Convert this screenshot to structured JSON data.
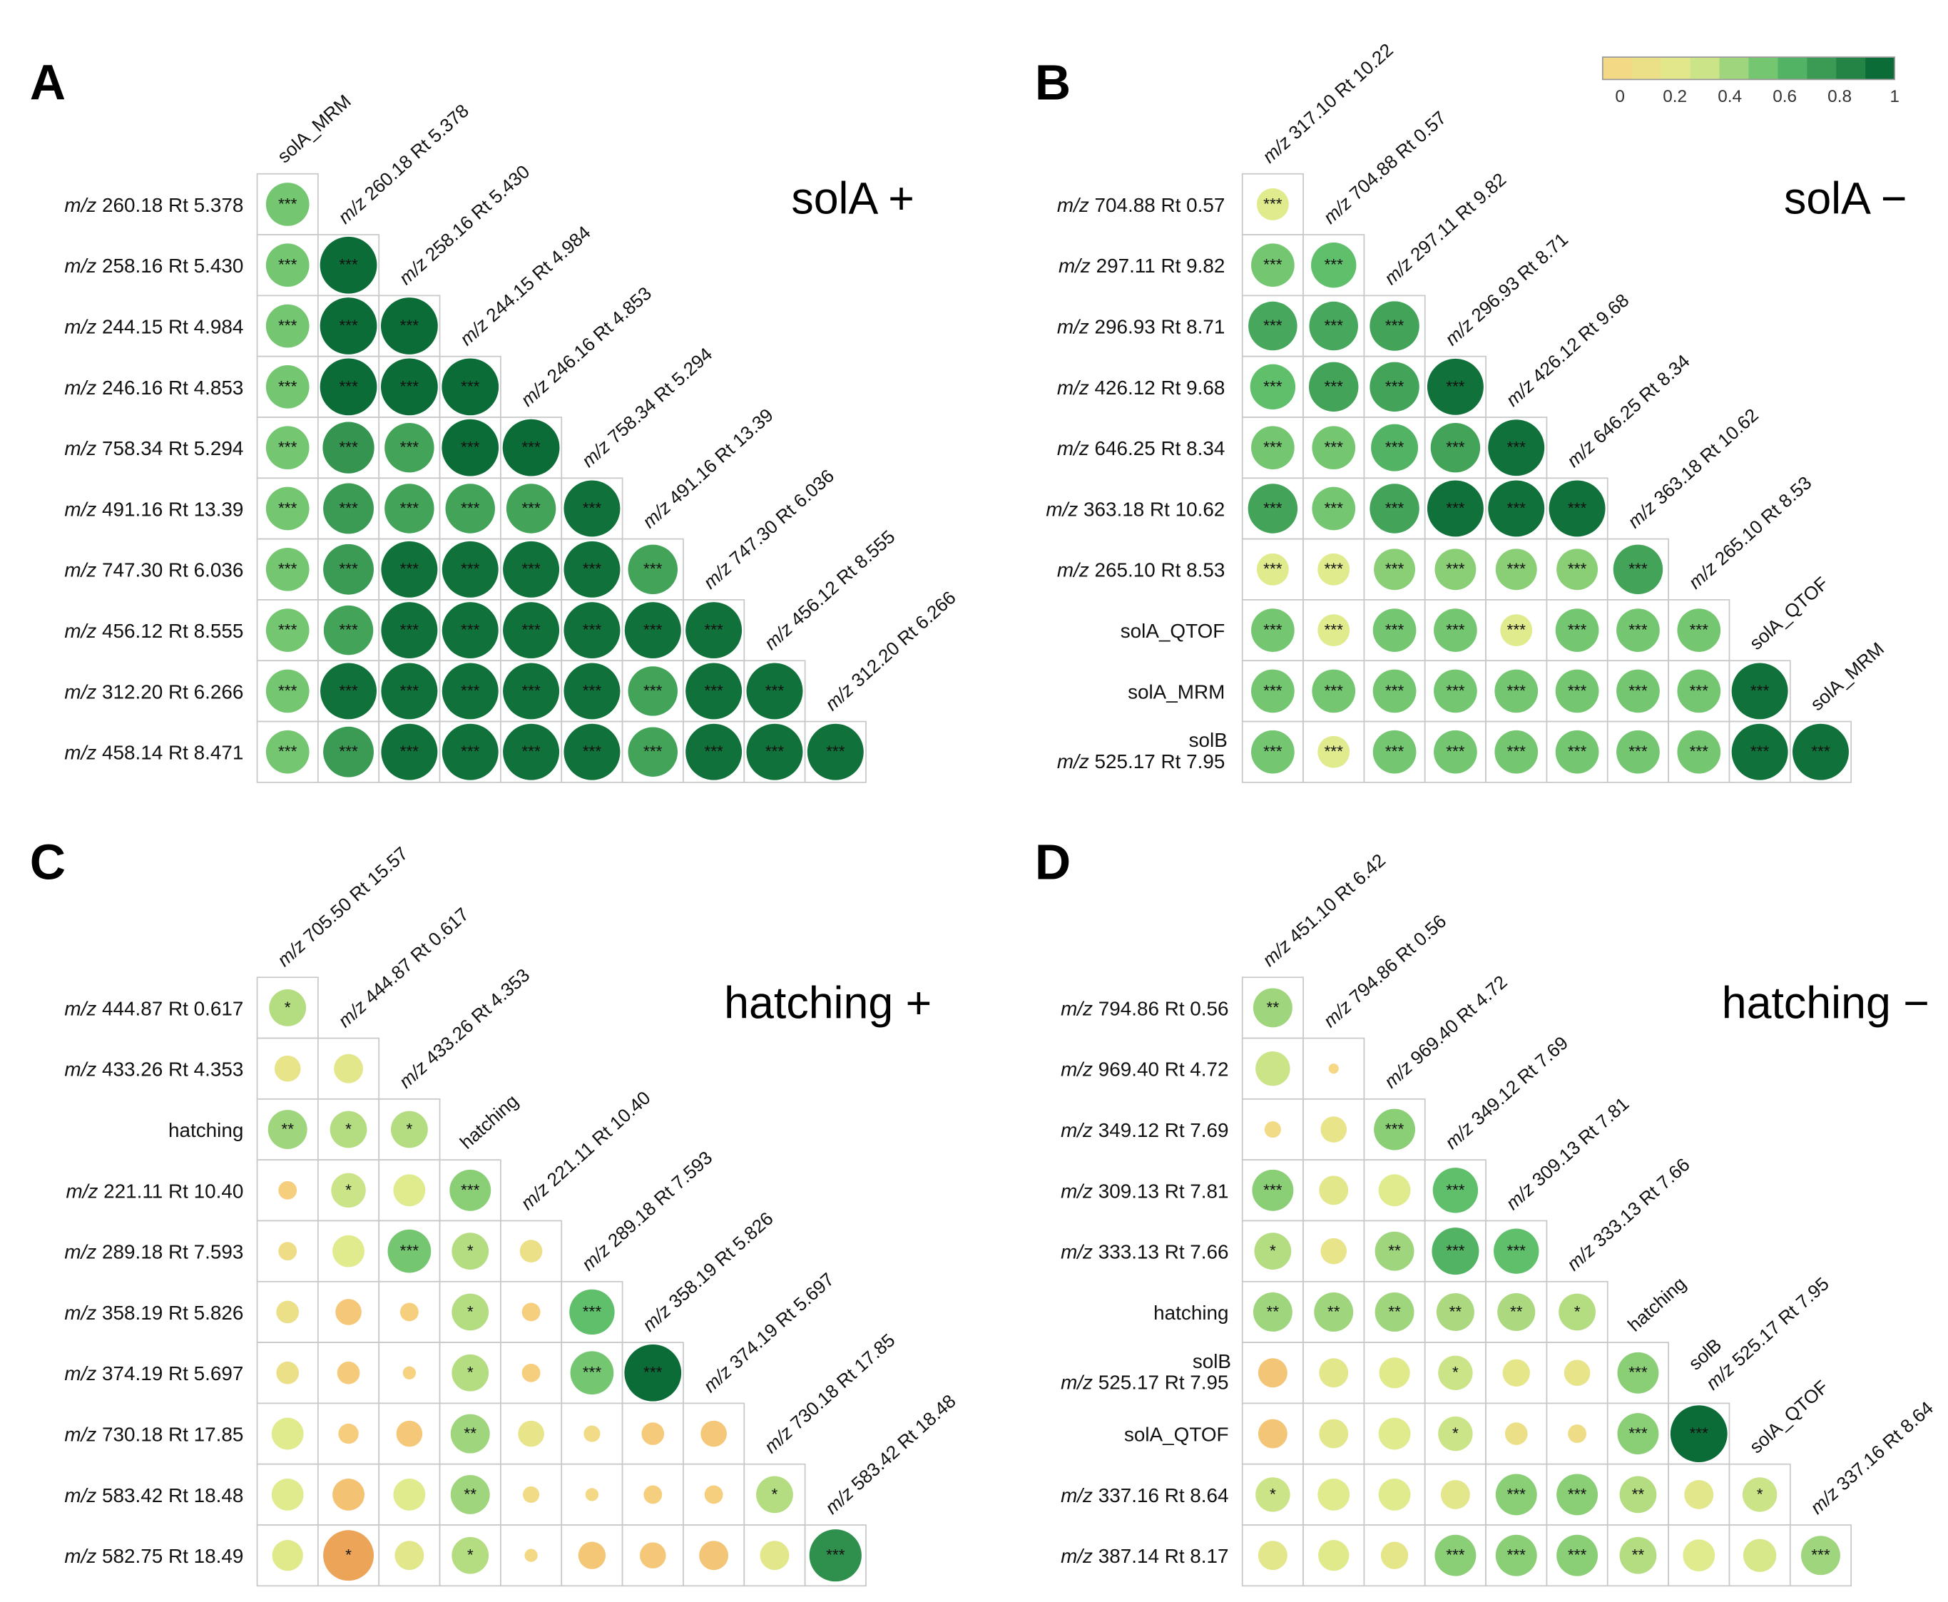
{
  "legend": {
    "ticks": [
      "0",
      "0.2",
      "0.4",
      "0.6",
      "0.8",
      "1"
    ]
  },
  "colors": {
    "neg": "#e8944a",
    "zero": "#f7d584",
    "low": "#dfeb8c",
    "mid": "#5fbf6b",
    "high": "#006030",
    "border": "#c8c8c8",
    "text": "#111111"
  },
  "chart_data": [
    {
      "type": "heatmap",
      "panel": "A",
      "title": "solA +",
      "labels": [
        {
          "pre": "m/z",
          "text": "260.18 Rt 5.378"
        },
        {
          "pre": "m/z",
          "text": "258.16 Rt 5.430"
        },
        {
          "pre": "m/z",
          "text": "244.15 Rt 4.984"
        },
        {
          "pre": "m/z",
          "text": "246.16 Rt 4.853"
        },
        {
          "pre": "m/z",
          "text": "758.34 Rt 5.294"
        },
        {
          "pre": "m/z",
          "text": "491.16 Rt 13.39"
        },
        {
          "pre": "m/z",
          "text": "747.30 Rt 6.036"
        },
        {
          "pre": "m/z",
          "text": "456.12 Rt 8.555"
        },
        {
          "pre": "m/z",
          "text": "312.20 Rt 6.266"
        },
        {
          "pre": "m/z",
          "text": "458.14 Rt 8.471"
        }
      ],
      "top_labels": [
        {
          "pre": "",
          "text": "solA_MRM"
        },
        {
          "pre": "m/z",
          "text": "260.18 Rt 5.378"
        },
        {
          "pre": "m/z",
          "text": "258.16 Rt 5.430"
        },
        {
          "pre": "m/z",
          "text": "244.15 Rt 4.984"
        },
        {
          "pre": "m/z",
          "text": "246.16 Rt 4.853"
        },
        {
          "pre": "m/z",
          "text": "758.34 Rt 5.294"
        },
        {
          "pre": "m/z",
          "text": "491.16 Rt 13.39"
        },
        {
          "pre": "m/z",
          "text": "747.30 Rt 6.036"
        },
        {
          "pre": "m/z",
          "text": "456.12 Rt 8.555"
        },
        {
          "pre": "m/z",
          "text": "312.20 Rt 6.266"
        }
      ],
      "values": [
        [
          0.55
        ],
        [
          0.55,
          0.95
        ],
        [
          0.55,
          0.95,
          0.95
        ],
        [
          0.55,
          0.95,
          0.95,
          0.95
        ],
        [
          0.55,
          0.78,
          0.72,
          0.95,
          0.95
        ],
        [
          0.55,
          0.75,
          0.72,
          0.72,
          0.72,
          0.93
        ],
        [
          0.55,
          0.75,
          0.93,
          0.93,
          0.93,
          0.93,
          0.72
        ],
        [
          0.55,
          0.72,
          0.93,
          0.93,
          0.93,
          0.93,
          0.93,
          0.93
        ],
        [
          0.55,
          0.93,
          0.93,
          0.93,
          0.93,
          0.93,
          0.72,
          0.93,
          0.93
        ],
        [
          0.55,
          0.75,
          0.93,
          0.93,
          0.93,
          0.93,
          0.72,
          0.93,
          0.93,
          0.93
        ]
      ],
      "stars": [
        [
          "***"
        ],
        [
          "***",
          "***"
        ],
        [
          "***",
          "***",
          "***"
        ],
        [
          "***",
          "***",
          "***",
          "***"
        ],
        [
          "***",
          "***",
          "***",
          "***",
          "***"
        ],
        [
          "***",
          "***",
          "***",
          "***",
          "***",
          "***"
        ],
        [
          "***",
          "***",
          "***",
          "***",
          "***",
          "***",
          "***"
        ],
        [
          "***",
          "***",
          "***",
          "***",
          "***",
          "***",
          "***",
          "***"
        ],
        [
          "***",
          "***",
          "***",
          "***",
          "***",
          "***",
          "***",
          "***",
          "***"
        ],
        [
          "***",
          "***",
          "***",
          "***",
          "***",
          "***",
          "***",
          "***",
          "***",
          "***"
        ]
      ]
    },
    {
      "type": "heatmap",
      "panel": "B",
      "title": "solA −",
      "labels": [
        {
          "pre": "m/z",
          "text": "704.88 Rt 0.57"
        },
        {
          "pre": "m/z",
          "text": "297.11 Rt 9.82"
        },
        {
          "pre": "m/z",
          "text": "296.93 Rt 8.71"
        },
        {
          "pre": "m/z",
          "text": "426.12 Rt 9.68"
        },
        {
          "pre": "m/z",
          "text": "646.25 Rt 8.34"
        },
        {
          "pre": "m/z",
          "text": "363.18 Rt 10.62"
        },
        {
          "pre": "m/z",
          "text": "265.10 Rt 8.53"
        },
        {
          "pre": "",
          "text": "solA_QTOF"
        },
        {
          "pre": "",
          "text": "solA_MRM"
        },
        {
          "pre": "m/z",
          "text": "525.17 Rt 7.95",
          "top": "solB"
        }
      ],
      "top_labels": [
        {
          "pre": "m/z",
          "text": "317.10 Rt 10.22"
        },
        {
          "pre": "m/z",
          "text": "704.88 Rt 0.57"
        },
        {
          "pre": "m/z",
          "text": "297.11 Rt 9.82"
        },
        {
          "pre": "m/z",
          "text": "296.93 Rt 8.71"
        },
        {
          "pre": "m/z",
          "text": "426.12 Rt 9.68"
        },
        {
          "pre": "m/z",
          "text": "646.25 Rt 8.34"
        },
        {
          "pre": "m/z",
          "text": "363.18 Rt 10.62"
        },
        {
          "pre": "m/z",
          "text": "265.10 Rt 8.53"
        },
        {
          "pre": "",
          "text": "solA_QTOF"
        },
        {
          "pre": "",
          "text": "solA_MRM"
        }
      ],
      "values": [
        [
          0.3
        ],
        [
          0.55,
          0.6
        ],
        [
          0.7,
          0.7,
          0.72
        ],
        [
          0.6,
          0.72,
          0.72,
          0.93
        ],
        [
          0.55,
          0.55,
          0.65,
          0.72,
          0.93
        ],
        [
          0.72,
          0.55,
          0.72,
          0.93,
          0.93,
          0.93
        ],
        [
          0.3,
          0.3,
          0.5,
          0.5,
          0.5,
          0.5,
          0.72
        ],
        [
          0.55,
          0.3,
          0.55,
          0.55,
          0.3,
          0.55,
          0.55,
          0.55
        ],
        [
          0.55,
          0.55,
          0.55,
          0.55,
          0.55,
          0.55,
          0.55,
          0.55,
          0.93
        ],
        [
          0.55,
          0.3,
          0.55,
          0.55,
          0.55,
          0.55,
          0.55,
          0.55,
          0.93,
          0.93
        ]
      ],
      "stars": [
        [
          "***"
        ],
        [
          "***",
          "***"
        ],
        [
          "***",
          "***",
          "***"
        ],
        [
          "***",
          "***",
          "***",
          "***"
        ],
        [
          "***",
          "***",
          "***",
          "***",
          "***"
        ],
        [
          "***",
          "***",
          "***",
          "***",
          "***",
          "***"
        ],
        [
          "***",
          "***",
          "***",
          "***",
          "***",
          "***",
          "***"
        ],
        [
          "***",
          "***",
          "***",
          "***",
          "***",
          "***",
          "***",
          "***"
        ],
        [
          "***",
          "***",
          "***",
          "***",
          "***",
          "***",
          "***",
          "***",
          "***"
        ],
        [
          "***",
          "***",
          "***",
          "***",
          "***",
          "***",
          "***",
          "***",
          "***",
          "***"
        ]
      ]
    },
    {
      "type": "heatmap",
      "panel": "C",
      "title": "hatching +",
      "labels": [
        {
          "pre": "m/z",
          "text": "444.87 Rt 0.617"
        },
        {
          "pre": "m/z",
          "text": "433.26 Rt 4.353"
        },
        {
          "pre": "",
          "text": "hatching"
        },
        {
          "pre": "m/z",
          "text": "221.11 Rt 10.40"
        },
        {
          "pre": "m/z",
          "text": "289.18 Rt 7.593"
        },
        {
          "pre": "m/z",
          "text": "358.19 Rt 5.826"
        },
        {
          "pre": "m/z",
          "text": "374.19 Rt 5.697"
        },
        {
          "pre": "m/z",
          "text": "730.18 Rt 17.85"
        },
        {
          "pre": "m/z",
          "text": "583.42 Rt 18.48"
        },
        {
          "pre": "m/z",
          "text": "582.75 Rt 18.49"
        }
      ],
      "top_labels": [
        {
          "pre": "m/z",
          "text": "705.50 Rt 15.57"
        },
        {
          "pre": "m/z",
          "text": "444.87 Rt 0.617"
        },
        {
          "pre": "m/z",
          "text": "433.26 Rt 4.353"
        },
        {
          "pre": "",
          "text": "hatching"
        },
        {
          "pre": "m/z",
          "text": "221.11 Rt 10.40"
        },
        {
          "pre": "m/z",
          "text": "289.18 Rt 7.593"
        },
        {
          "pre": "m/z",
          "text": "358.19 Rt 5.826"
        },
        {
          "pre": "m/z",
          "text": "374.19 Rt 5.697"
        },
        {
          "pre": "m/z",
          "text": "730.18 Rt 17.85"
        },
        {
          "pre": "m/z",
          "text": "583.42 Rt 18.48"
        }
      ],
      "values": [
        [
          0.4
        ],
        [
          0.2,
          0.25
        ],
        [
          0.45,
          0.4,
          0.4
        ],
        [
          -0.1,
          0.35,
          0.3,
          0.5
        ],
        [
          0.1,
          0.3,
          0.55,
          0.4,
          0.15
        ],
        [
          0.15,
          -0.2,
          -0.1,
          0.4,
          -0.1,
          0.6
        ],
        [
          0.15,
          -0.15,
          -0.05,
          0.4,
          -0.1,
          0.55,
          0.95
        ],
        [
          0.3,
          -0.12,
          -0.2,
          0.45,
          0.2,
          0.08,
          -0.15,
          -0.2
        ],
        [
          0.3,
          -0.3,
          0.3,
          0.45,
          0.08,
          0.05,
          -0.1,
          -0.1,
          0.4
        ],
        [
          0.28,
          -0.75,
          0.25,
          0.4,
          0.05,
          -0.22,
          -0.2,
          -0.25,
          0.25,
          0.8
        ]
      ],
      "stars": [
        [
          "*"
        ],
        [
          "",
          ""
        ],
        [
          "**",
          "*",
          "*"
        ],
        [
          "",
          "*",
          "",
          "***"
        ],
        [
          "",
          "",
          "***",
          "*",
          ""
        ],
        [
          "",
          "",
          "",
          "*",
          "",
          "***"
        ],
        [
          "",
          "",
          "",
          "*",
          "",
          "***",
          "***"
        ],
        [
          "",
          "",
          "",
          "**",
          "",
          "",
          "",
          ""
        ],
        [
          "",
          "",
          "",
          "**",
          "",
          "",
          "",
          "",
          "*"
        ],
        [
          "",
          "*",
          "",
          "*",
          "",
          "",
          "",
          "",
          "",
          "***"
        ]
      ]
    },
    {
      "type": "heatmap",
      "panel": "D",
      "title": "hatching −",
      "labels": [
        {
          "pre": "m/z",
          "text": "794.86 Rt 0.56"
        },
        {
          "pre": "m/z",
          "text": "969.40 Rt 4.72"
        },
        {
          "pre": "m/z",
          "text": "349.12 Rt 7.69"
        },
        {
          "pre": "m/z",
          "text": "309.13 Rt 7.81"
        },
        {
          "pre": "m/z",
          "text": "333.13 Rt 7.66"
        },
        {
          "pre": "",
          "text": "hatching"
        },
        {
          "pre": "m/z",
          "text": "525.17 Rt 7.95",
          "top": "solB"
        },
        {
          "pre": "",
          "text": "solA_QTOF"
        },
        {
          "pre": "m/z",
          "text": "337.16 Rt 8.64"
        },
        {
          "pre": "m/z",
          "text": "387.14 Rt 8.17"
        }
      ],
      "top_labels": [
        {
          "pre": "m/z",
          "text": "451.10 Rt 6.42"
        },
        {
          "pre": "m/z",
          "text": "794.86 Rt 0.56"
        },
        {
          "pre": "m/z",
          "text": "969.40 Rt 4.72"
        },
        {
          "pre": "m/z",
          "text": "349.12 Rt 7.69"
        },
        {
          "pre": "m/z",
          "text": "309.13 Rt 7.81"
        },
        {
          "pre": "m/z",
          "text": "333.13 Rt 7.66"
        },
        {
          "pre": "",
          "text": "hatching"
        },
        {
          "pre": "m/z",
          "text": "525.17 Rt 7.95",
          "top": "solB"
        },
        {
          "pre": "",
          "text": "solA_QTOF"
        },
        {
          "pre": "m/z",
          "text": "337.16 Rt 8.64"
        }
      ],
      "values": [
        [
          0.45
        ],
        [
          0.35,
          0.03
        ],
        [
          0.08,
          0.2,
          0.5
        ],
        [
          0.5,
          0.25,
          0.3,
          0.6
        ],
        [
          0.4,
          0.2,
          0.45,
          0.65,
          0.6
        ],
        [
          0.45,
          0.45,
          0.45,
          0.42,
          0.42,
          0.4
        ],
        [
          -0.25,
          0.25,
          0.28,
          0.35,
          0.22,
          0.2,
          0.5
        ],
        [
          -0.25,
          0.25,
          0.3,
          0.35,
          0.15,
          0.1,
          0.5,
          0.95
        ],
        [
          0.35,
          0.3,
          0.3,
          0.25,
          0.5,
          0.5,
          0.4,
          0.25,
          0.35
        ],
        [
          0.25,
          0.28,
          0.22,
          0.5,
          0.5,
          0.5,
          0.4,
          0.3,
          0.32,
          0.45
        ]
      ],
      "stars": [
        [
          "**"
        ],
        [
          "",
          ""
        ],
        [
          "",
          "",
          "***"
        ],
        [
          "***",
          "",
          "",
          "***"
        ],
        [
          "*",
          "",
          "**",
          "***",
          "***"
        ],
        [
          "**",
          "**",
          "**",
          "**",
          "**",
          "*"
        ],
        [
          "",
          "",
          "",
          "*",
          "",
          "",
          "***"
        ],
        [
          "",
          "",
          "",
          "*",
          "",
          "",
          "***",
          "***"
        ],
        [
          "*",
          "",
          "",
          "",
          "***",
          "***",
          "**",
          "",
          "*"
        ],
        [
          "",
          "",
          "",
          "***",
          "***",
          "***",
          "**",
          "",
          "",
          "***"
        ]
      ]
    }
  ]
}
